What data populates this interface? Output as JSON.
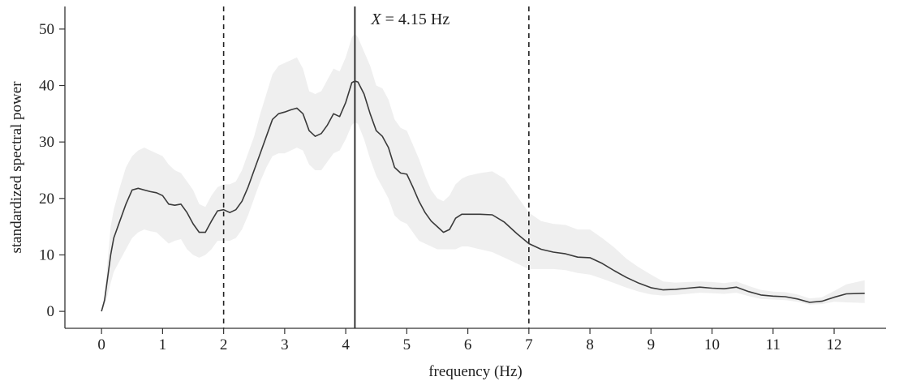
{
  "chart_data": {
    "type": "line",
    "title": "",
    "xlabel": "frequency (Hz)",
    "ylabel": "standardized spectral power",
    "xlim": [
      -0.6,
      12.85
    ],
    "ylim": [
      -3,
      54
    ],
    "xticks": [
      0,
      1,
      2,
      3,
      4,
      5,
      6,
      7,
      8,
      9,
      10,
      11,
      12
    ],
    "yticks": [
      0,
      10,
      20,
      30,
      40,
      50
    ],
    "grid": false,
    "legend": "none",
    "colors": {
      "line": "#3a3a3a",
      "band": "#efefef",
      "marker": "#222222"
    },
    "series": [
      {
        "x": [
          0,
          0.05,
          0.1,
          0.15,
          0.2,
          0.3,
          0.4,
          0.5,
          0.6,
          0.7,
          0.8,
          0.9,
          1.0,
          1.1,
          1.2,
          1.3,
          1.4,
          1.5,
          1.6,
          1.7,
          1.8,
          1.9,
          2.0,
          2.1,
          2.2,
          2.3,
          2.4,
          2.5,
          2.6,
          2.7,
          2.8,
          2.9,
          3.0,
          3.1,
          3.2,
          3.3,
          3.4,
          3.5,
          3.6,
          3.7,
          3.8,
          3.9,
          4.0,
          4.1,
          4.15,
          4.2,
          4.3,
          4.4,
          4.5,
          4.6,
          4.7,
          4.8,
          4.9,
          5.0,
          5.1,
          5.2,
          5.3,
          5.4,
          5.5,
          5.6,
          5.7,
          5.8,
          5.9,
          6.0,
          6.2,
          6.4,
          6.6,
          6.8,
          7.0,
          7.2,
          7.4,
          7.6,
          7.8,
          8.0,
          8.2,
          8.4,
          8.6,
          8.8,
          9.0,
          9.2,
          9.4,
          9.6,
          9.8,
          10.0,
          10.2,
          10.4,
          10.6,
          10.8,
          11.0,
          11.2,
          11.4,
          11.6,
          11.8,
          12.0,
          12.2,
          12.5
        ],
        "y": [
          0,
          2,
          6,
          10,
          13,
          16,
          19,
          21.5,
          21.8,
          21.5,
          21.2,
          21,
          20.5,
          19,
          18.8,
          19,
          17.5,
          15.5,
          14,
          14,
          16,
          17.8,
          18,
          17.5,
          18,
          19.5,
          22,
          25,
          28,
          31,
          34,
          35,
          35.3,
          35.7,
          36,
          35,
          32,
          31,
          31.5,
          33,
          35,
          34.5,
          37,
          40.5,
          40.8,
          40.6,
          38.5,
          35,
          32,
          31,
          29,
          25.5,
          24.5,
          24.3,
          22,
          19.5,
          17.5,
          16,
          15,
          14,
          14.5,
          16.5,
          17.2,
          17.2,
          17.2,
          17.1,
          15.8,
          13.8,
          12,
          11,
          10.5,
          10.2,
          9.6,
          9.5,
          8.5,
          7.2,
          6.0,
          5.0,
          4.2,
          3.8,
          3.9,
          4.1,
          4.3,
          4.1,
          4.0,
          4.3,
          3.5,
          2.9,
          2.7,
          2.6,
          2.2,
          1.6,
          1.8,
          2.5,
          3.1,
          3.2
        ],
        "lower": [
          0,
          1,
          3,
          5,
          7,
          9,
          11,
          13,
          14,
          14.5,
          14.2,
          14,
          13,
          12,
          12.5,
          12.8,
          11,
          10,
          9.5,
          10,
          11,
          12.5,
          12.5,
          12.5,
          13,
          14.5,
          17,
          20,
          23,
          25.5,
          27.5,
          28,
          28,
          28.5,
          29,
          28.5,
          26,
          25,
          25,
          26.5,
          28,
          28.5,
          30.5,
          33,
          33.5,
          33.2,
          30.5,
          27,
          24,
          22,
          20,
          17,
          16,
          15.5,
          14,
          12.5,
          12,
          11.5,
          11,
          11,
          11,
          11,
          11.5,
          11.5,
          11,
          10.5,
          9.5,
          8.5,
          7.5,
          7.5,
          7.5,
          7.3,
          6.8,
          6.5,
          5.8,
          5.0,
          4.2,
          3.5,
          3.0,
          2.8,
          2.9,
          3.1,
          3.3,
          3.2,
          3.1,
          3.3,
          2.7,
          2.2,
          2.1,
          2.0,
          1.7,
          1.2,
          1.3,
          1.7,
          1.6,
          1.5
        ],
        "upper": [
          0,
          3,
          9,
          15,
          18,
          22,
          25.5,
          27.5,
          28.5,
          29,
          28.5,
          28,
          27.5,
          26,
          25,
          24.5,
          23,
          21.5,
          19,
          18.5,
          20.5,
          22,
          22.5,
          22.5,
          23,
          25,
          28,
          31,
          35,
          38.5,
          42,
          43.5,
          44,
          44.5,
          45,
          43,
          39,
          38.5,
          39,
          41,
          43,
          42.5,
          45,
          48.5,
          49.2,
          48.5,
          46,
          43.5,
          40,
          39.5,
          37.5,
          34,
          32.5,
          32,
          29.5,
          27,
          24,
          21.5,
          20,
          19.5,
          20.5,
          22.5,
          23.5,
          24,
          24.5,
          24.8,
          23.5,
          20.5,
          17.5,
          16,
          15.5,
          15.3,
          14.5,
          14.5,
          13,
          11.3,
          9.3,
          7.8,
          6.5,
          5.3,
          5.1,
          5.2,
          5.3,
          5.2,
          5.0,
          5.3,
          4.5,
          3.8,
          3.5,
          3.4,
          3.0,
          2.3,
          2.5,
          3.6,
          4.8,
          5.5
        ]
      }
    ],
    "reference_lines": [
      {
        "x": 2,
        "style": "dashed"
      },
      {
        "x": 4.15,
        "style": "solid"
      },
      {
        "x": 7,
        "style": "dashed"
      }
    ],
    "annotation": {
      "var": "X",
      "text": " = 4.15 Hz"
    }
  }
}
